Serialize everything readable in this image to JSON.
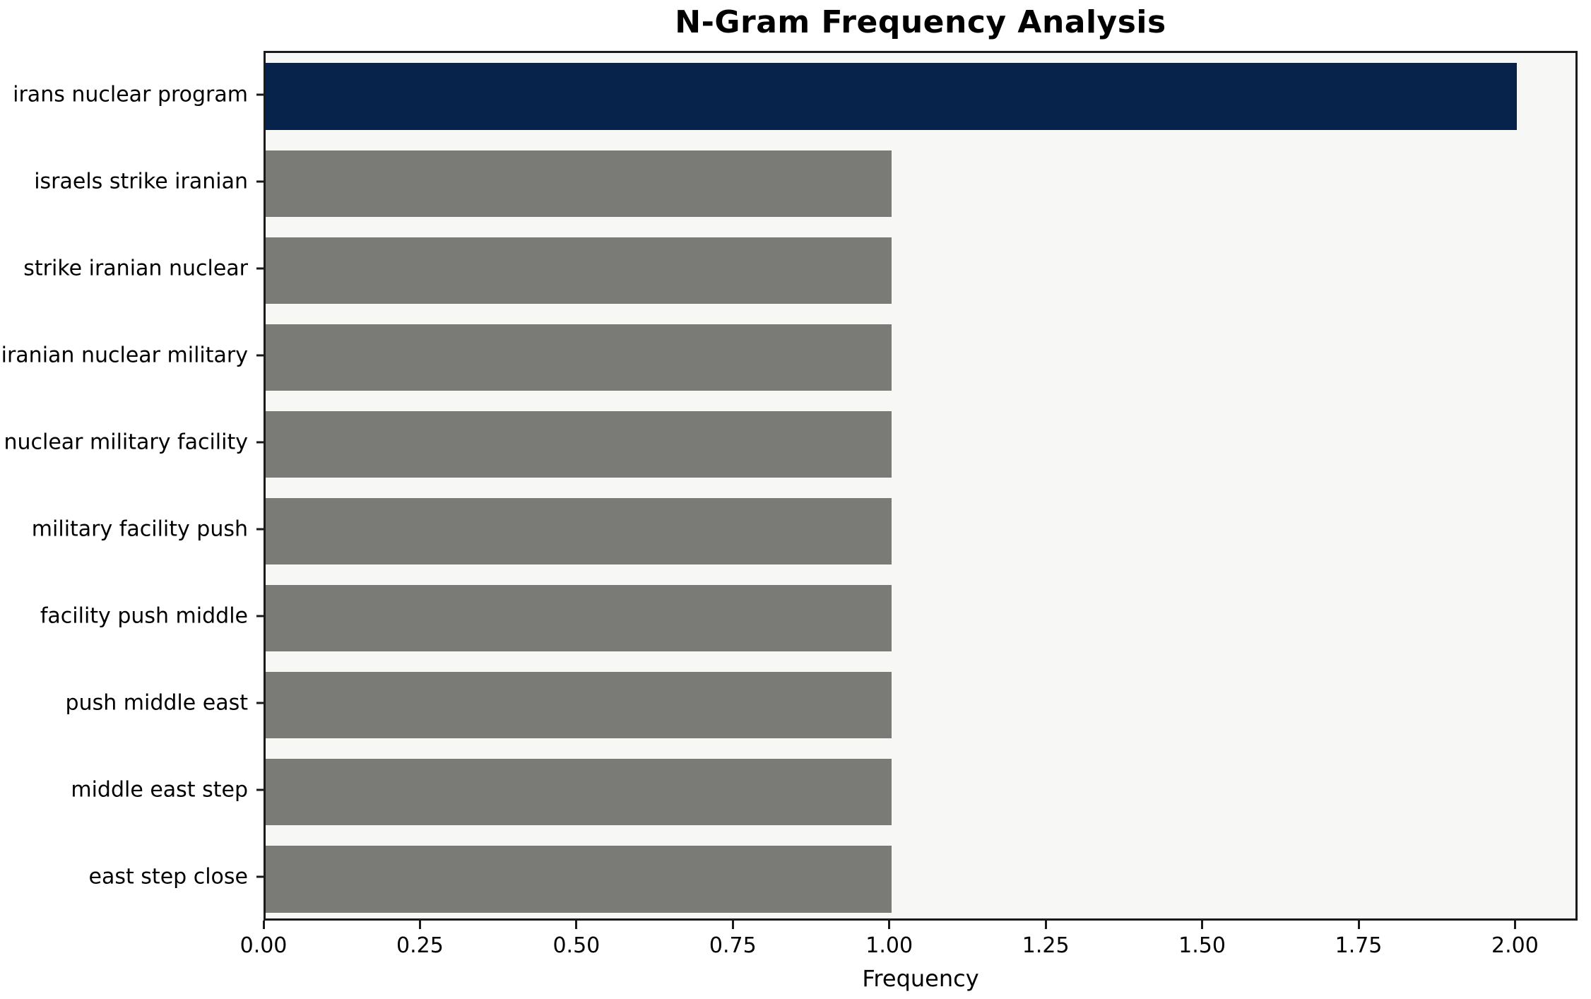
{
  "chart_data": {
    "type": "bar",
    "orientation": "horizontal",
    "title": "N-Gram Frequency Analysis",
    "xlabel": "Frequency",
    "ylabel": "",
    "categories": [
      "irans nuclear program",
      "israels strike iranian",
      "strike iranian nuclear",
      "iranian nuclear military",
      "nuclear military facility",
      "military facility push",
      "facility push middle",
      "push middle east",
      "middle east step",
      "east step close"
    ],
    "values": [
      2,
      1,
      1,
      1,
      1,
      1,
      1,
      1,
      1,
      1
    ],
    "xlim": [
      0,
      2.1
    ],
    "xtick_values": [
      0.0,
      0.25,
      0.5,
      0.75,
      1.0,
      1.25,
      1.5,
      1.75,
      2.0
    ],
    "xtick_labels": [
      "0.00",
      "0.25",
      "0.50",
      "0.75",
      "1.00",
      "1.25",
      "1.50",
      "1.75",
      "2.00"
    ],
    "grid": "off",
    "legend": "none",
    "colors": {
      "highlight_bar": "#07234b",
      "default_bar": "#7a7a76",
      "plot_background": "#f7f7f6",
      "figure_background": "#ffffff",
      "axis": "#1a1a1a",
      "text": "#000000"
    },
    "bar_color_indices": [
      "highlight_bar",
      "default_bar",
      "default_bar",
      "default_bar",
      "default_bar",
      "default_bar",
      "default_bar",
      "default_bar",
      "default_bar",
      "default_bar"
    ]
  }
}
